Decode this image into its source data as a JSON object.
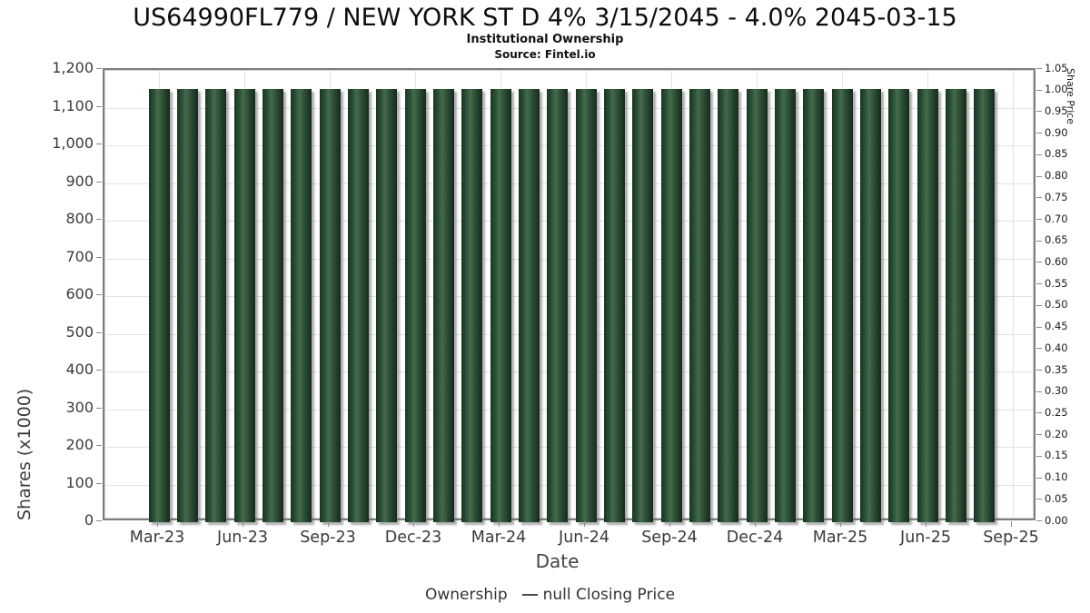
{
  "header": {
    "title": "US64990FL779 / NEW YORK ST D 4% 3/15/2045 - 4.0% 2045-03-15",
    "subtitle": "Institutional Ownership",
    "source": "Source: Fintel.io"
  },
  "colors": {
    "bar_dark": "#1a3522",
    "bar_light": "#436b4c",
    "legend_swatch": "#1e3b26",
    "grid": "#e2e2e2",
    "axis_border": "#7d7d7d"
  },
  "legend": {
    "items": [
      {
        "label": "Ownership",
        "marker": "square",
        "color": "#1e3b26"
      },
      {
        "label": "null Closing Price",
        "marker": "line",
        "color": "#4a4a4a"
      }
    ]
  },
  "chart_data": {
    "type": "bar",
    "title": "US64990FL779 / NEW YORK ST D 4% 3/15/2045 - 4.0% 2045-03-15",
    "subtitle": "Institutional Ownership",
    "xlabel": "Date",
    "ylabel_left": "Shares (x1000)",
    "ylabel_right": "Share Price",
    "legend_position": "bottom-center",
    "grid": true,
    "ylim_left": [
      0,
      1200
    ],
    "y_left_tick_step": 100,
    "y_left_tick_labels": [
      "0",
      "100",
      "200",
      "300",
      "400",
      "500",
      "600",
      "700",
      "800",
      "900",
      "1,000",
      "1,100",
      "1,200"
    ],
    "ylim_right": [
      0.0,
      1.05
    ],
    "y_right_tick_step": 0.05,
    "y_right_tick_labels": [
      "0.00",
      "0.05",
      "0.10",
      "0.15",
      "0.20",
      "0.25",
      "0.30",
      "0.35",
      "0.40",
      "0.45",
      "0.50",
      "0.55",
      "0.60",
      "0.65",
      "0.70",
      "0.75",
      "0.80",
      "0.85",
      "0.90",
      "0.95",
      "1.00",
      "1.05"
    ],
    "x_axis_tick_labels": [
      "Mar-23",
      "Jun-23",
      "Sep-23",
      "Dec-23",
      "Mar-24",
      "Jun-24",
      "Sep-24",
      "Dec-24",
      "Mar-25",
      "Jun-25",
      "Sep-25"
    ],
    "categories": [
      "Mar-23",
      "Apr-23",
      "May-23",
      "Jun-23",
      "Jul-23",
      "Aug-23",
      "Sep-23",
      "Oct-23",
      "Nov-23",
      "Dec-23",
      "Jan-24",
      "Feb-24",
      "Mar-24",
      "Apr-24",
      "May-24",
      "Jun-24",
      "Jul-24",
      "Aug-24",
      "Sep-24",
      "Oct-24",
      "Nov-24",
      "Dec-24",
      "Jan-25",
      "Feb-25",
      "Mar-25",
      "Apr-25",
      "May-25",
      "Jun-25",
      "Jul-25",
      "Aug-25"
    ],
    "series": [
      {
        "name": "Ownership",
        "axis": "left",
        "type": "bar",
        "values": [
          1150,
          1150,
          1150,
          1150,
          1150,
          1150,
          1150,
          1150,
          1150,
          1150,
          1150,
          1150,
          1150,
          1150,
          1150,
          1150,
          1150,
          1150,
          1150,
          1150,
          1150,
          1150,
          1150,
          1150,
          1150,
          1150,
          1150,
          1150,
          1150,
          1150
        ]
      },
      {
        "name": "null Closing Price",
        "axis": "right",
        "type": "line",
        "values": []
      }
    ]
  }
}
